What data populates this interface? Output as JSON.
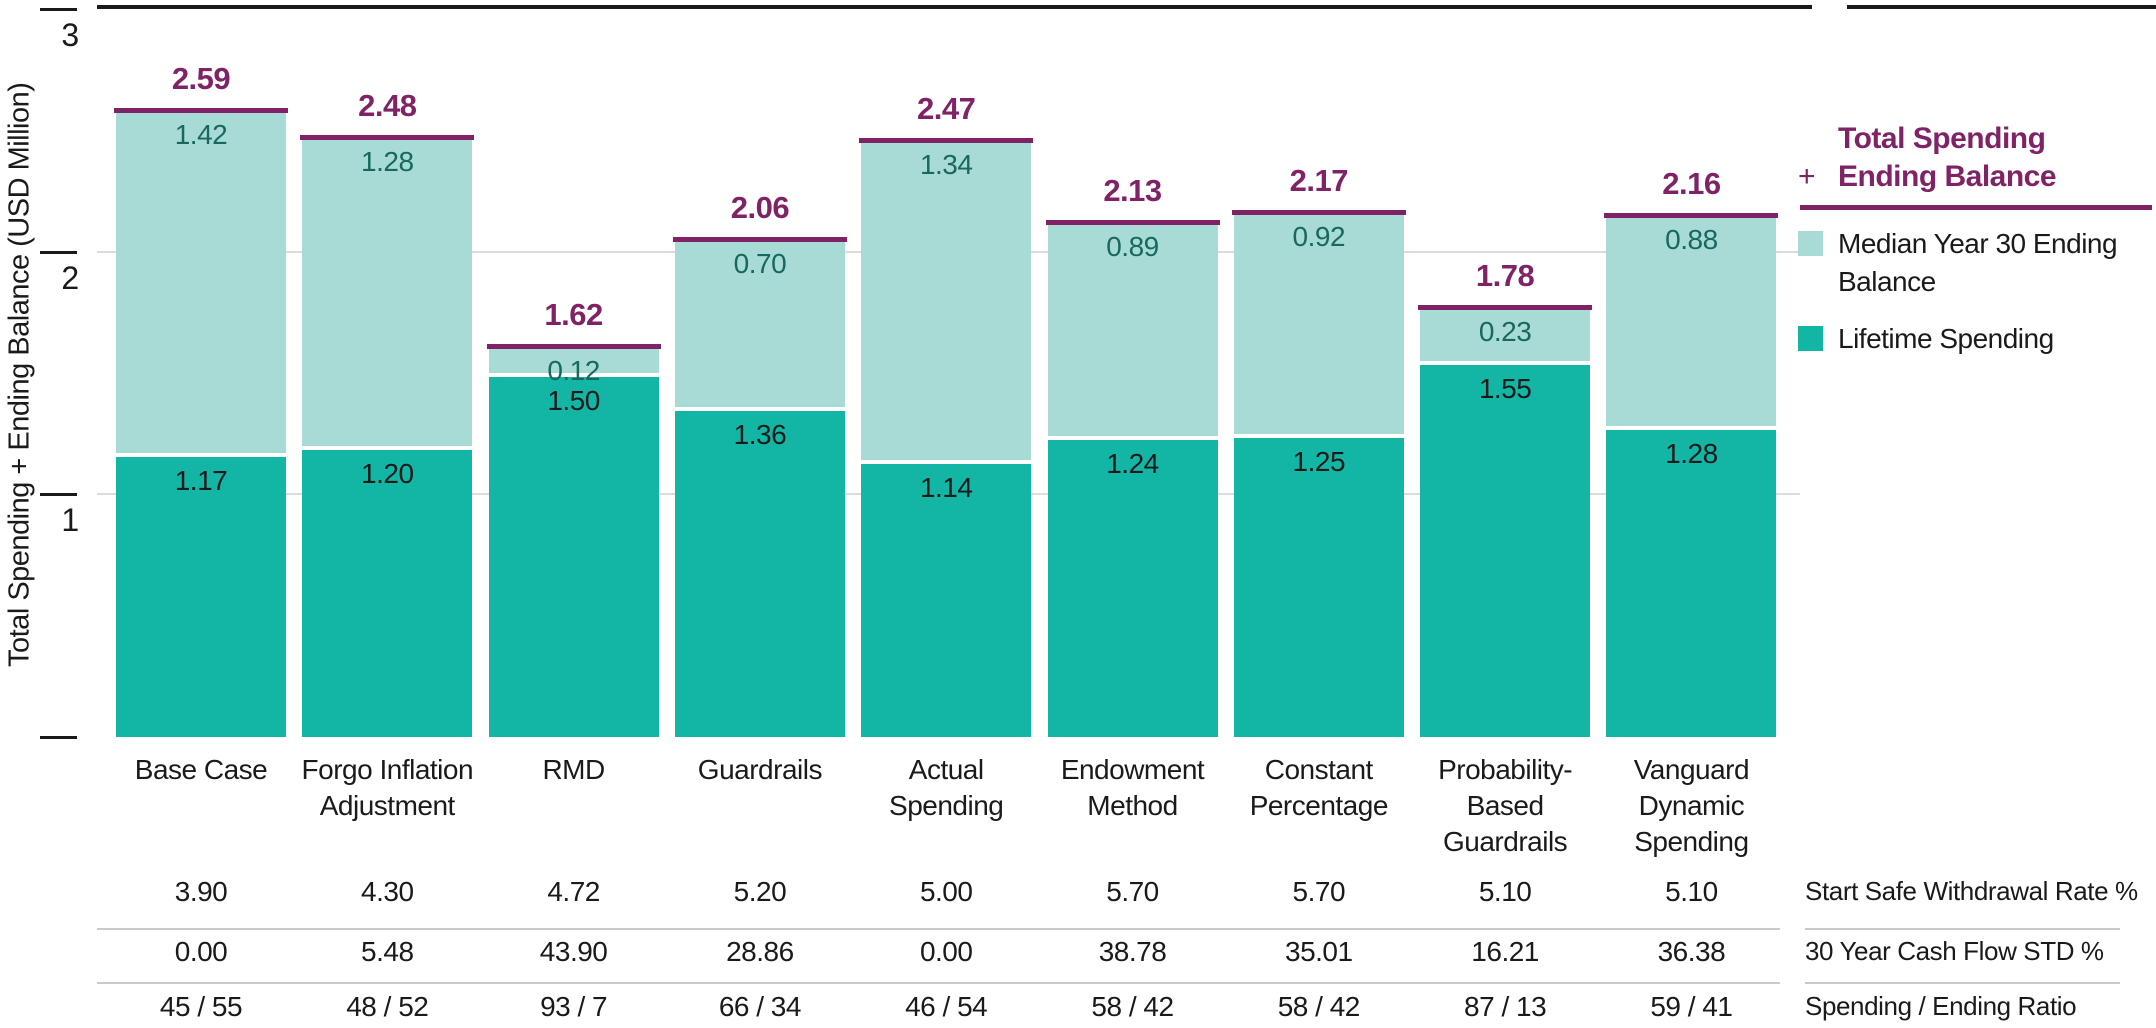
{
  "chart_data": {
    "type": "bar",
    "stacked": true,
    "ylabel": "Total Spending + Ending Balance (USD Million)",
    "ylim": [
      0,
      3
    ],
    "yticks": [
      1,
      2,
      3
    ],
    "grid": "horizontal",
    "legend_position": "right",
    "categories": [
      "Base Case",
      "Forgo Inflation\nAdjustment",
      "RMD",
      "Guardrails",
      "Actual\nSpending",
      "Endowment\nMethod",
      "Constant\nPercentage",
      "Probability-\nBased\nGuardrails",
      "Vanguard\nDynamic\nSpending"
    ],
    "series": [
      {
        "name": "Lifetime Spending",
        "color": "#13b5a5",
        "values": [
          1.17,
          1.2,
          1.5,
          1.36,
          1.14,
          1.24,
          1.25,
          1.55,
          1.28
        ]
      },
      {
        "name": "Median Year 30 Ending Balance",
        "color": "#a9dbd6",
        "values": [
          1.42,
          1.28,
          0.12,
          0.7,
          1.34,
          0.89,
          0.92,
          0.23,
          0.88
        ]
      }
    ],
    "totals": {
      "name": "Total Spending + Ending Balance",
      "color": "#7f2366",
      "values": [
        2.59,
        2.48,
        1.62,
        2.06,
        2.47,
        2.13,
        2.17,
        1.78,
        2.16
      ]
    }
  },
  "table": {
    "rows": [
      {
        "label": "Start Safe Withdrawal Rate %",
        "values": [
          "3.90",
          "4.30",
          "4.72",
          "5.20",
          "5.00",
          "5.70",
          "5.70",
          "5.10",
          "5.10"
        ]
      },
      {
        "label": "30 Year Cash Flow STD %",
        "values": [
          "0.00",
          "5.48",
          "43.90",
          "28.86",
          "0.00",
          "38.78",
          "35.01",
          "16.21",
          "36.38"
        ]
      },
      {
        "label": "Spending / Ending Ratio",
        "values": [
          "45 / 55",
          "48 / 52",
          "93 / 7",
          "66 / 34",
          "46 / 54",
          "58 / 42",
          "58 / 42",
          "87 / 13",
          "59 / 41"
        ]
      }
    ]
  },
  "legend": {
    "total_title_line1": "Total Spending",
    "total_title_plus": "+",
    "total_title_line2": "Ending Balance",
    "items": [
      {
        "label": "Median Year 30 Ending\nBalance",
        "color": "#a9dbd6"
      },
      {
        "label": "Lifetime Spending",
        "color": "#13b5a5"
      }
    ]
  },
  "colors": {
    "accent_purple": "#7f2366",
    "dark_teal": "#13b5a5",
    "light_teal": "#a9dbd6",
    "ending_value_text": "#17695f",
    "black_text": "#1a1a1a",
    "gridline": "#dcdcdc",
    "separator": "#c9c9c9"
  }
}
